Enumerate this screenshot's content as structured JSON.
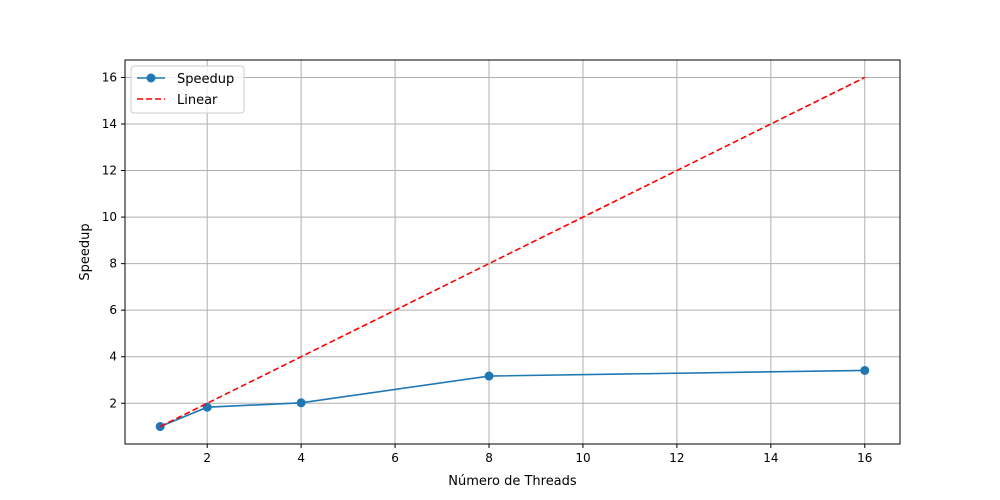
{
  "chart_data": {
    "type": "line",
    "title": "",
    "xlabel": "Número de Threads",
    "ylabel": "Speedup",
    "xlim": [
      0.25,
      16.75
    ],
    "ylim": [
      0.25,
      16.75
    ],
    "xticks": [
      "2",
      "4",
      "6",
      "8",
      "10",
      "12",
      "14",
      "16"
    ],
    "yticks": [
      "2",
      "4",
      "6",
      "8",
      "10",
      "12",
      "14",
      "16"
    ],
    "grid": true,
    "legend_position": "upper-left",
    "series": [
      {
        "name": "Speedup",
        "style": "solid-marker",
        "color": "#1f77b4",
        "x": [
          1,
          2,
          4,
          8,
          16
        ],
        "y": [
          1.0,
          1.83,
          2.02,
          3.17,
          3.41
        ]
      },
      {
        "name": "Linear",
        "style": "dashed",
        "color": "#ff0000",
        "x": [
          1,
          2,
          4,
          8,
          16
        ],
        "y": [
          1,
          2,
          4,
          8,
          16
        ]
      }
    ]
  }
}
